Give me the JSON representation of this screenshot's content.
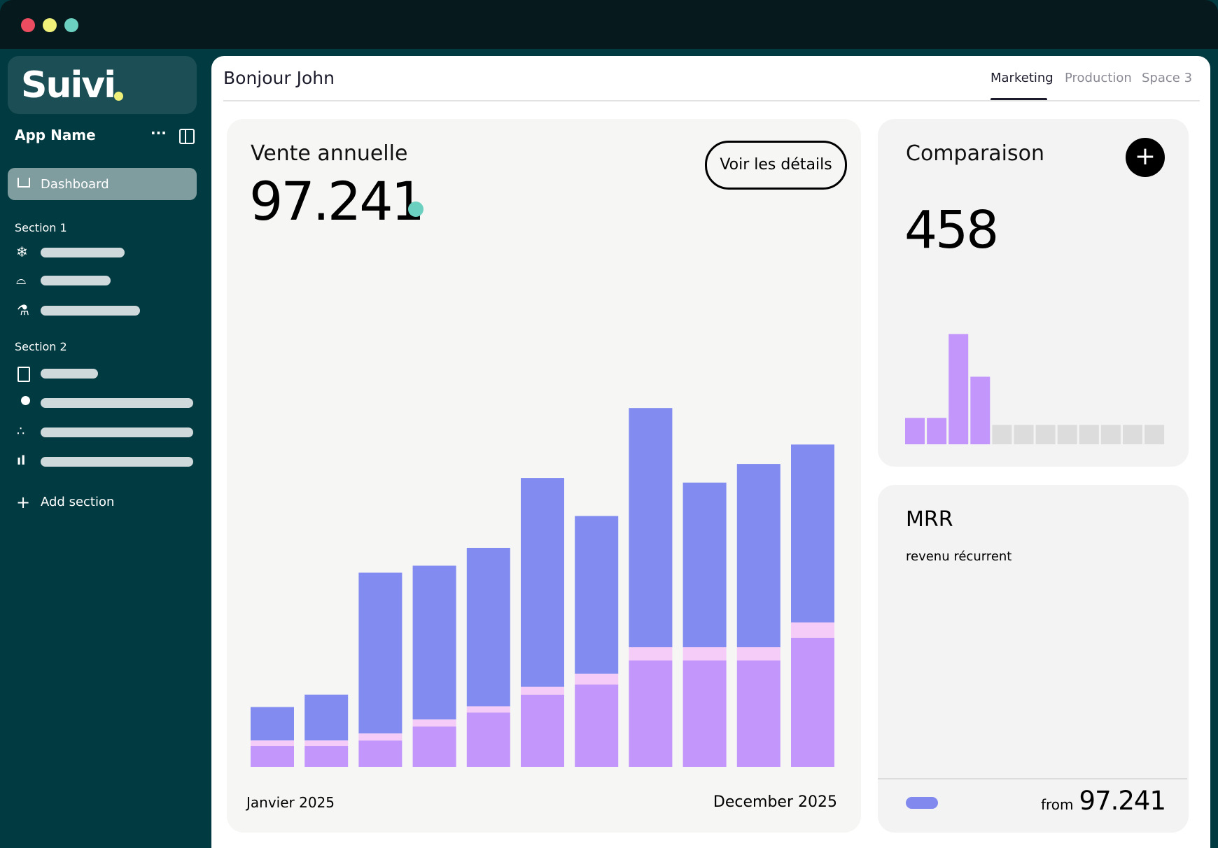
{
  "app": {
    "logo": "Suivi",
    "name": "App Name",
    "nav_active": "Dashboard",
    "sections": [
      "Section 1",
      "Section 2"
    ],
    "add_section": "Add section"
  },
  "header": {
    "greeting": "Bonjour John",
    "tabs": [
      "Marketing",
      "Production",
      "Space 3"
    ],
    "active_tab": 0
  },
  "chart_data": [
    {
      "type": "bar",
      "stacked": true,
      "title": "Vente annuelle",
      "headline": "97.241",
      "button": "Voir les détails",
      "x_labels": [
        "Janvier 2025",
        "December 2025"
      ],
      "ylim": [
        0,
        500
      ],
      "series": [
        {
          "color": "#c396fb",
          "values": [
            27,
            27,
            34,
            52,
            70,
            93,
            106,
            137,
            137,
            137,
            166
          ]
        },
        {
          "color": "#f5cbf7",
          "values": [
            7,
            7,
            9,
            9,
            8,
            10,
            14,
            17,
            17,
            17,
            20
          ]
        },
        {
          "color": "#818bf0",
          "values": [
            43,
            59,
            207,
            198,
            204,
            269,
            203,
            308,
            212,
            236,
            229
          ]
        }
      ]
    },
    {
      "type": "bar",
      "title": "Comparaison",
      "headline": "458",
      "ylim": [
        0,
        150
      ],
      "values": [
        34,
        34,
        142,
        87,
        25,
        25,
        25,
        25,
        25,
        25,
        25,
        25
      ],
      "colors": [
        "#c396fb",
        "#c396fb",
        "#c396fb",
        "#c396fb",
        "#dcdcdc",
        "#dcdcdc",
        "#dcdcdc",
        "#dcdcdc",
        "#dcdcdc",
        "#dcdcdc",
        "#dcdcdc",
        "#dcdcdc"
      ]
    }
  ],
  "mrr": {
    "title": "MRR",
    "subtitle": "revenu récurrent",
    "from_label": "from",
    "from_value": "97.241"
  }
}
